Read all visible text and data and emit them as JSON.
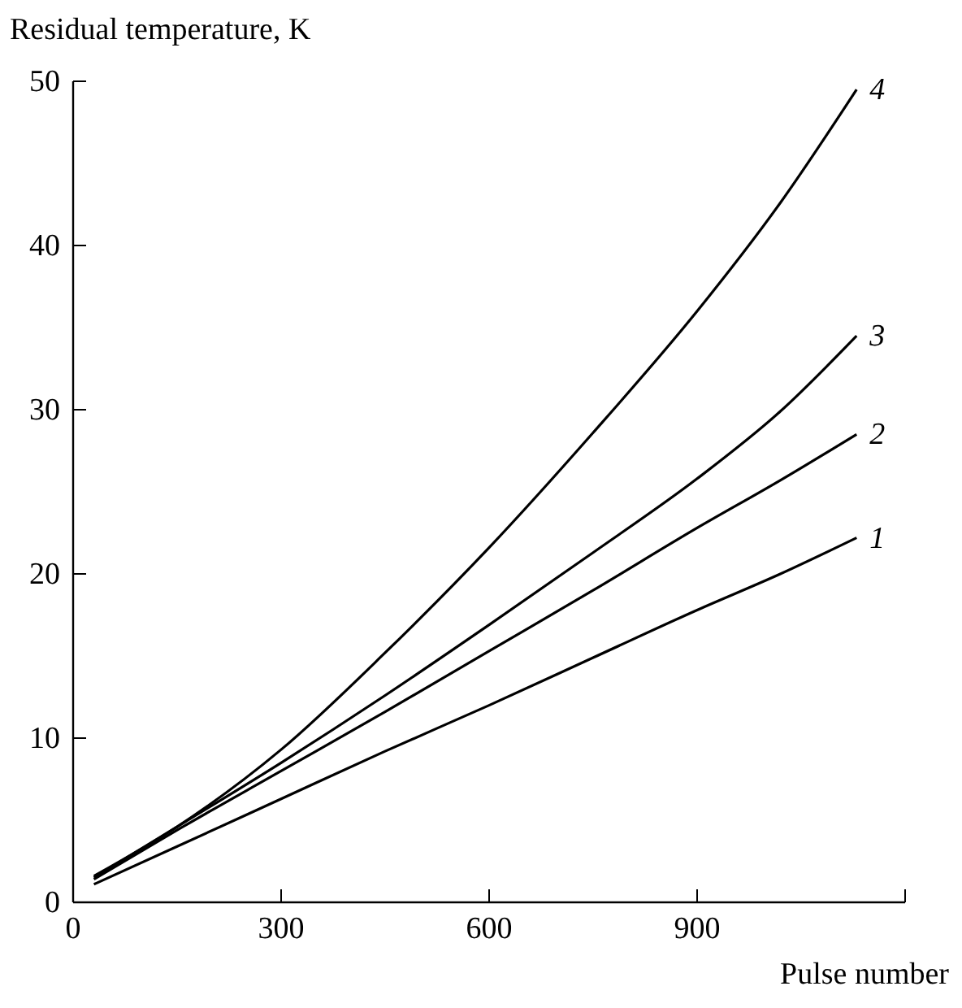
{
  "chart_data": {
    "type": "line",
    "xlabel": "Pulse number",
    "ylabel": "Residual temperature, K",
    "xlim": [
      0,
      1200
    ],
    "xticks": [
      0,
      300,
      600,
      900,
      {
        "value": 1200,
        "label": null
      }
    ],
    "ylim": [
      0,
      50
    ],
    "yticks": [
      0,
      10,
      20,
      30,
      40,
      50
    ],
    "grid": false,
    "marker": "none",
    "line_style": "solid",
    "x": [
      30,
      150,
      300,
      450,
      600,
      750,
      900,
      1020,
      1130
    ],
    "series": [
      {
        "name": "1",
        "color": "#000000",
        "values": [
          1.1,
          3.4,
          6.3,
          9.2,
          12.0,
          14.9,
          17.8,
          20.0,
          22.2
        ]
      },
      {
        "name": "2",
        "color": "#000000",
        "values": [
          1.4,
          4.4,
          8.0,
          11.6,
          15.3,
          19.0,
          22.8,
          25.7,
          28.5
        ]
      },
      {
        "name": "3",
        "color": "#000000",
        "values": [
          1.5,
          4.6,
          8.5,
          12.6,
          16.9,
          21.3,
          25.8,
          29.9,
          34.5
        ]
      },
      {
        "name": "4",
        "color": "#000000",
        "values": [
          1.6,
          4.6,
          9.3,
          15.2,
          21.6,
          28.6,
          36.0,
          42.6,
          49.5
        ]
      }
    ]
  }
}
